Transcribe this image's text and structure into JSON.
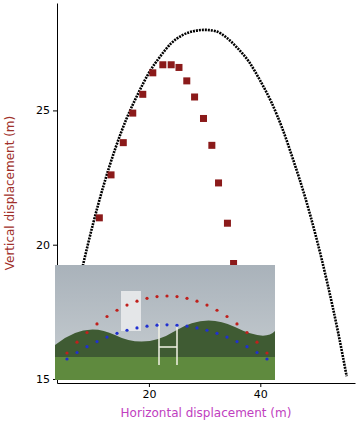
{
  "chart_data": {
    "type": "scatter",
    "x_label": "Horizontal displacement (m)",
    "y_label": "Vertical displacement (m)",
    "xlim": [
      3.5,
      57
    ],
    "xticks": [
      20,
      40
    ],
    "ylim": [
      14.85,
      29
    ],
    "yticks": [
      15,
      20,
      25
    ],
    "grid": false,
    "series": [
      {
        "type": "line",
        "color": "#000000",
        "line_style": "dotted",
        "x": [
          8,
          10,
          12,
          14,
          16,
          18,
          20,
          22,
          24,
          26,
          28,
          30,
          32,
          34,
          36,
          38,
          40,
          42,
          44,
          46,
          48,
          50,
          52,
          54,
          55.5
        ],
        "values": [
          19.1,
          20.8,
          22.3,
          23.6,
          24.7,
          25.6,
          26.4,
          27.0,
          27.5,
          27.8,
          27.95,
          28.0,
          27.95,
          27.7,
          27.3,
          26.8,
          26.1,
          25.3,
          24.3,
          23.1,
          21.8,
          20.3,
          18.6,
          16.7,
          15.1
        ]
      },
      {
        "type": "scatter",
        "color": "#8b1a1a",
        "marker": "square",
        "x": [
          11.1,
          13.2,
          15.4,
          17.1,
          18.9,
          20.7,
          22.5,
          24.0,
          25.4,
          26.8,
          28.2,
          29.8,
          31.3,
          32.5,
          34.1,
          35.2
        ],
        "values": [
          21.0,
          22.6,
          23.8,
          24.9,
          25.6,
          26.4,
          26.7,
          26.7,
          26.6,
          26.1,
          25.5,
          24.7,
          23.7,
          22.3,
          20.8,
          19.3
        ]
      }
    ]
  }
}
